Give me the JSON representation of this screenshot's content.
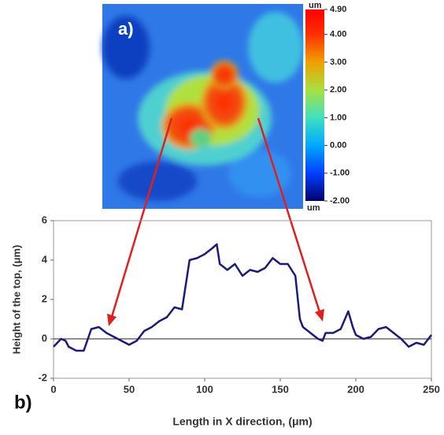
{
  "chart_data": [
    {
      "type": "heatmap",
      "label": "a)",
      "unit_top": "um",
      "unit_bottom": "um",
      "clim": [
        -2,
        4.9
      ],
      "cticks": [
        {
          "value": 4.9,
          "label": "4.90"
        },
        {
          "value": 4,
          "label": "4.00"
        },
        {
          "value": 3,
          "label": "3.00"
        },
        {
          "value": 2,
          "label": "2.00"
        },
        {
          "value": 1,
          "label": "1.00"
        },
        {
          "value": 0,
          "label": "0.00"
        },
        {
          "value": -1,
          "label": "-1.00"
        },
        {
          "value": -2,
          "label": "-2.00"
        }
      ]
    },
    {
      "type": "line",
      "label": "b)",
      "xlabel": "Length in X direction, (μm)",
      "ylabel": "Height of the top, (μm)",
      "xlim": [
        0,
        250
      ],
      "xticks": [
        0,
        50,
        100,
        150,
        200,
        250
      ],
      "ylim": [
        -2,
        6
      ],
      "yticks": [
        -2,
        0,
        2,
        4,
        6
      ],
      "series": [
        {
          "color": "#1c1c78",
          "x": [
            0,
            5,
            8,
            10,
            15,
            20,
            25,
            30,
            35,
            40,
            45,
            50,
            55,
            60,
            65,
            70,
            75,
            80,
            85,
            90,
            95,
            100,
            105,
            108,
            110,
            115,
            120,
            125,
            130,
            135,
            140,
            145,
            150,
            155,
            160,
            163,
            165,
            170,
            175,
            178,
            180,
            185,
            190,
            195,
            198,
            200,
            205,
            210,
            215,
            220,
            225,
            230,
            235,
            240,
            245,
            250
          ],
          "values": [
            -0.4,
            0.0,
            -0.1,
            -0.4,
            -0.6,
            -0.6,
            0.5,
            0.6,
            0.3,
            0.1,
            -0.1,
            -0.3,
            -0.1,
            0.4,
            0.6,
            0.9,
            1.1,
            1.6,
            1.5,
            4.0,
            4.1,
            4.3,
            4.6,
            4.8,
            3.8,
            3.5,
            3.8,
            3.2,
            3.5,
            3.4,
            3.6,
            4.1,
            3.8,
            3.8,
            3.2,
            1.0,
            0.6,
            0.3,
            0.0,
            -0.1,
            0.3,
            0.3,
            0.5,
            1.4,
            0.6,
            0.2,
            0.0,
            0.1,
            0.5,
            0.6,
            0.3,
            0.0,
            -0.4,
            -0.2,
            -0.3,
            0.2
          ]
        }
      ]
    }
  ]
}
